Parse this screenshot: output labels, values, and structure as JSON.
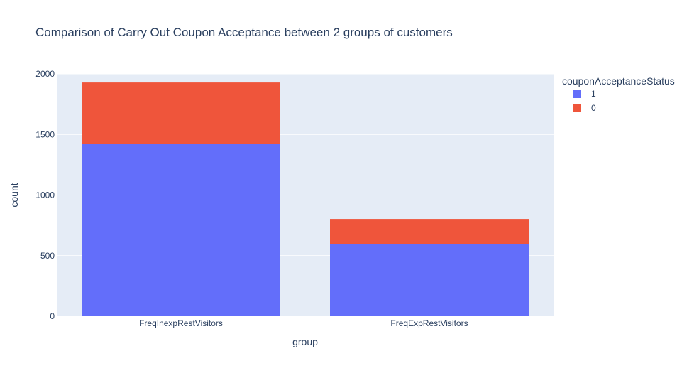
{
  "chart_data": {
    "type": "bar",
    "barmode": "stack",
    "title": "Comparison of Carry Out Coupon Acceptance between 2 groups of customers",
    "xlabel": "group",
    "ylabel": "count",
    "categories": [
      "FreqInexpRestVisitors",
      "FreqExpRestVisitors"
    ],
    "series": [
      {
        "name": "1",
        "values": [
          1421,
          593
        ],
        "color": "#636efa"
      },
      {
        "name": "0",
        "values": [
          508,
          210
        ],
        "color": "#ef553b"
      }
    ],
    "ylim": [
      0,
      2000
    ],
    "yticks": [
      0,
      500,
      1000,
      1500,
      2000
    ],
    "grid": true,
    "legend": {
      "title": "couponAcceptanceStatus",
      "placement": "top-right"
    },
    "plot_background": "#e5ecf6"
  }
}
